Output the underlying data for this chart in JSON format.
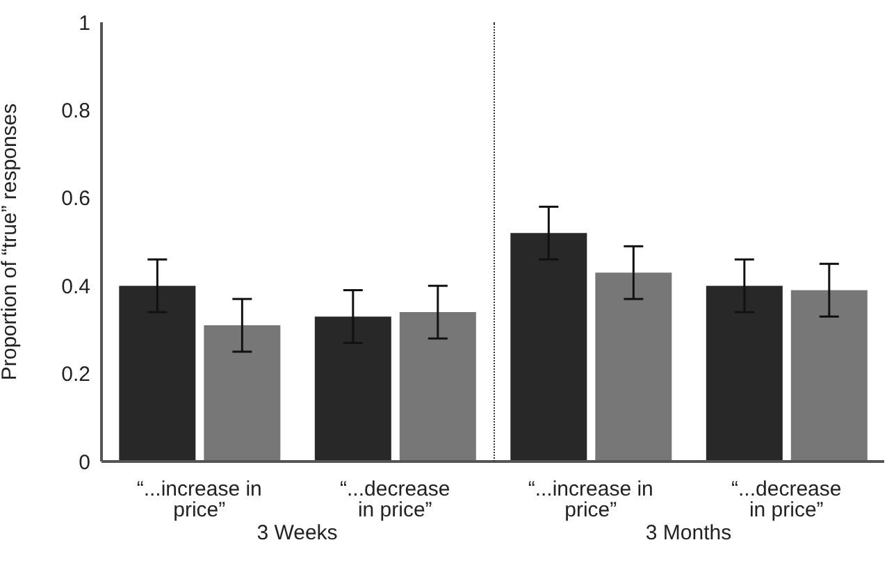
{
  "chart_data": {
    "type": "bar",
    "ylabel": "Proportion of “true” responses",
    "categories": [
      "“...increase in price”",
      "“...decrease in price”",
      "“...increase in price”",
      "“...decrease in price”"
    ],
    "series": [
      {
        "color": "#282828",
        "values": [
          0.4,
          0.33,
          0.52,
          0.4
        ],
        "errors": [
          0.06,
          0.06,
          0.06,
          0.06
        ]
      },
      {
        "color": "#777777",
        "values": [
          0.31,
          0.34,
          0.43,
          0.39
        ],
        "errors": [
          0.06,
          0.06,
          0.06,
          0.06
        ]
      }
    ],
    "ylim": [
      0,
      1
    ],
    "yticks": [
      0,
      0.2,
      0.4,
      0.6,
      0.8,
      1
    ],
    "annotations": [
      "3 Weeks",
      "3 Months"
    ],
    "grid": false,
    "legend": false
  }
}
